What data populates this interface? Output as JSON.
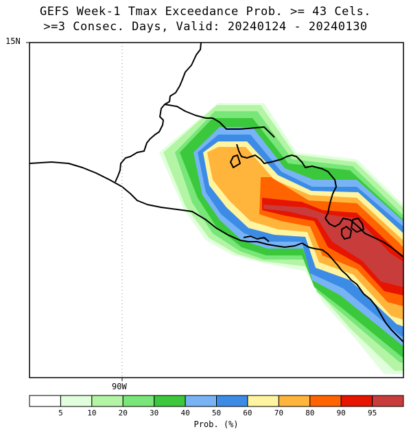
{
  "title": {
    "line1": "GEFS Week-1 Tmax Exceedance Prob. >= 43 Cels.",
    "line2": ">=3 Consec. Days, Valid: 20240124 - 20240130"
  },
  "map": {
    "lat_label": "15N",
    "lon_label": "90W",
    "gridline": "dotted at 90W"
  },
  "colorbar": {
    "title": "Prob. (%)",
    "ticks": [
      "5",
      "10",
      "20",
      "30",
      "40",
      "50",
      "60",
      "70",
      "80",
      "90",
      "95"
    ],
    "colors": [
      "#ffffff",
      "#e1ffdc",
      "#b4f5a5",
      "#78e678",
      "#3cc83c",
      "#78b4f5",
      "#3c8ce6",
      "#fff5a0",
      "#ffb43c",
      "#ff6400",
      "#e61400",
      "#c83c3c"
    ]
  }
}
